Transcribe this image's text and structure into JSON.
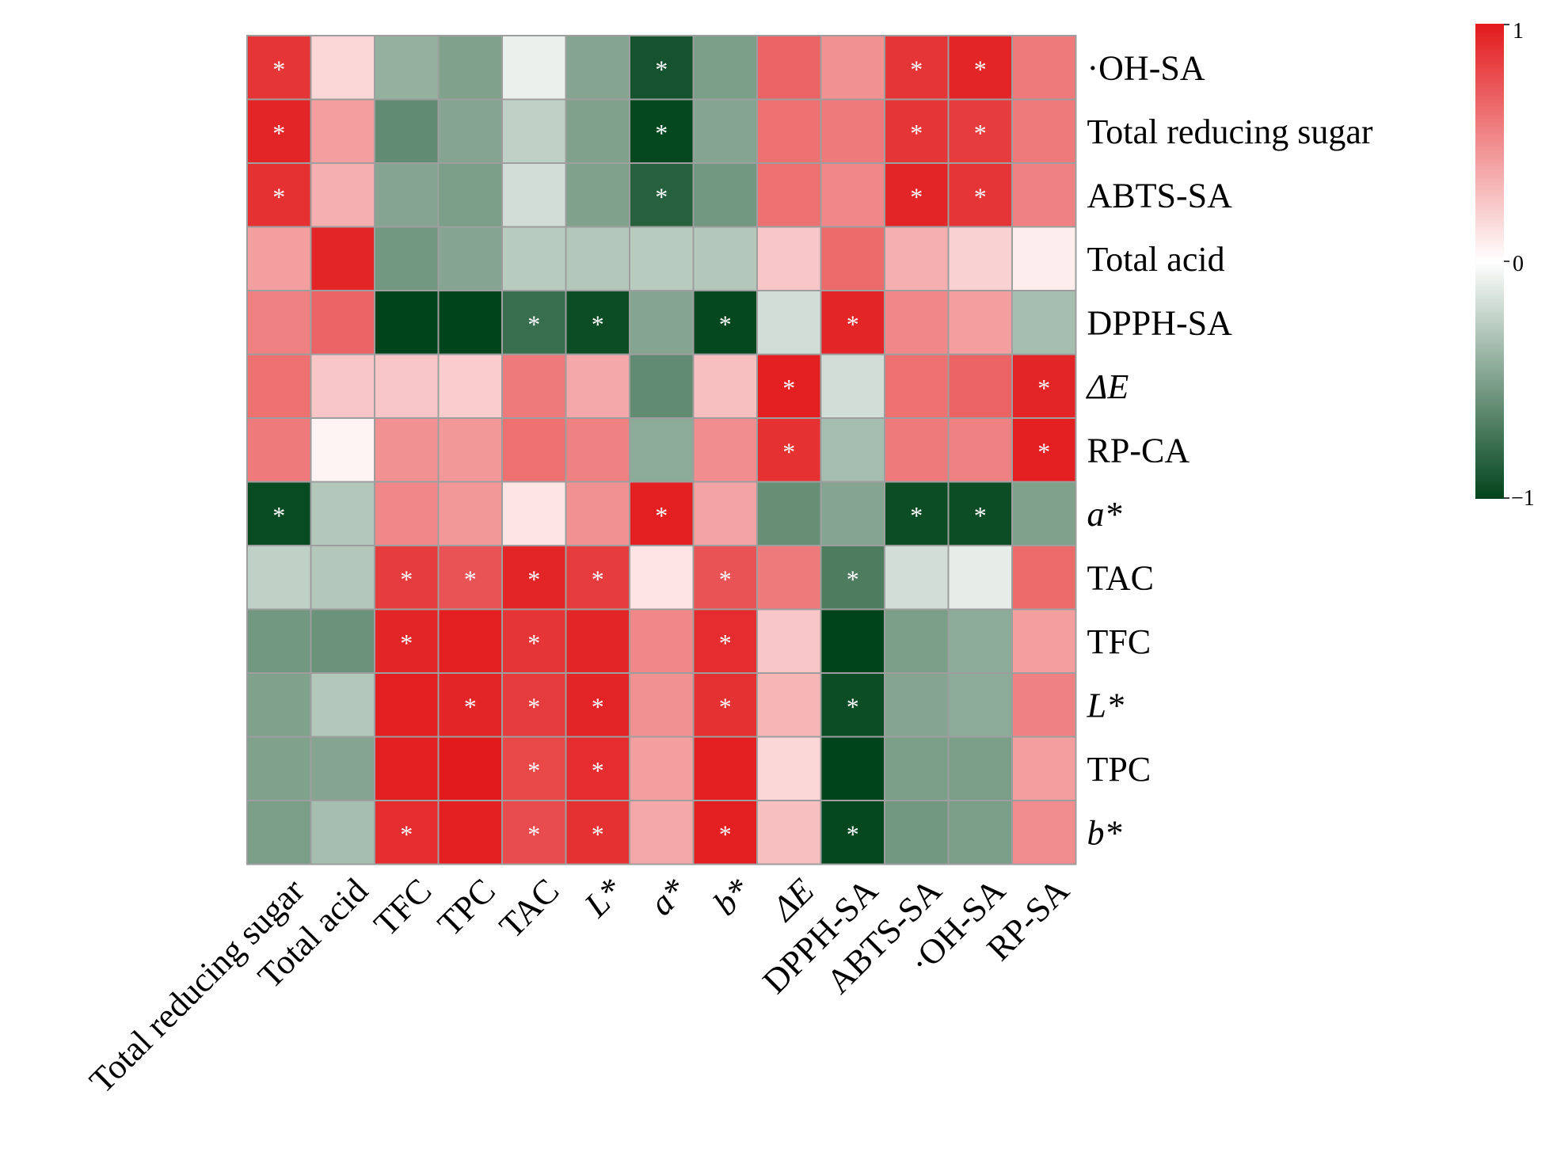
{
  "chart_data": {
    "type": "heatmap",
    "title": "",
    "columns": [
      "Total reducing sugar",
      "Total acid",
      "TFC",
      "TPC",
      "TAC",
      "L*",
      "a*",
      "b*",
      "ΔE",
      "DPPH-SA",
      "ABTS-SA",
      "·OH-SA",
      "RP-SA"
    ],
    "column_italic": [
      false,
      false,
      false,
      false,
      false,
      true,
      true,
      true,
      true,
      false,
      false,
      false,
      false
    ],
    "rows": [
      "·OH-SA",
      "Total reducing sugar",
      "ABTS-SA",
      "Total acid",
      "DPPH-SA",
      "ΔE",
      "RP-CA",
      "a*",
      "TAC",
      "TFC",
      "L*",
      "TPC",
      "b*"
    ],
    "row_italic": [
      false,
      false,
      false,
      false,
      false,
      true,
      false,
      true,
      false,
      false,
      true,
      false,
      true
    ],
    "values": [
      [
        0.88,
        0.18,
        -0.42,
        -0.5,
        -0.08,
        -0.48,
        -0.92,
        -0.52,
        0.68,
        0.48,
        0.88,
        0.95,
        0.58
      ],
      [
        0.95,
        0.42,
        -0.62,
        -0.48,
        -0.25,
        -0.5,
        -0.98,
        -0.48,
        0.62,
        0.58,
        0.88,
        0.85,
        0.58
      ],
      [
        0.9,
        0.35,
        -0.48,
        -0.52,
        -0.18,
        -0.5,
        -0.85,
        -0.55,
        0.62,
        0.52,
        0.95,
        0.88,
        0.55
      ],
      [
        0.42,
        0.95,
        -0.55,
        -0.48,
        -0.28,
        -0.3,
        -0.28,
        -0.3,
        0.25,
        0.65,
        0.35,
        0.2,
        0.08
      ],
      [
        0.55,
        0.68,
        -1.0,
        -1.0,
        -0.78,
        -0.95,
        -0.48,
        -0.98,
        -0.18,
        0.95,
        0.52,
        0.42,
        -0.35
      ],
      [
        0.62,
        0.25,
        0.25,
        0.22,
        0.58,
        0.38,
        -0.62,
        0.28,
        0.98,
        -0.18,
        0.62,
        0.68,
        0.95
      ],
      [
        0.58,
        0.05,
        0.48,
        0.45,
        0.62,
        0.55,
        -0.45,
        0.5,
        0.9,
        -0.35,
        0.58,
        0.55,
        0.98
      ],
      [
        -0.97,
        -0.3,
        0.52,
        0.45,
        0.12,
        0.48,
        0.98,
        0.4,
        -0.6,
        -0.48,
        -0.95,
        -0.95,
        -0.5
      ],
      [
        -0.25,
        -0.3,
        0.85,
        0.75,
        0.95,
        0.85,
        0.12,
        0.75,
        0.58,
        -0.7,
        -0.18,
        -0.1,
        0.65
      ],
      [
        -0.55,
        -0.58,
        0.95,
        0.98,
        0.88,
        0.95,
        0.52,
        0.92,
        0.25,
        -1.0,
        -0.52,
        -0.45,
        0.42
      ],
      [
        -0.5,
        -0.3,
        0.98,
        0.95,
        0.85,
        0.95,
        0.48,
        0.9,
        0.32,
        -0.95,
        -0.48,
        -0.45,
        0.55
      ],
      [
        -0.5,
        -0.48,
        0.98,
        1.0,
        0.8,
        0.92,
        0.42,
        0.98,
        0.18,
        -1.0,
        -0.52,
        -0.52,
        0.42
      ],
      [
        -0.52,
        -0.35,
        0.92,
        0.98,
        0.78,
        0.9,
        0.38,
        0.98,
        0.28,
        -0.98,
        -0.55,
        -0.52,
        0.5
      ]
    ],
    "significant": [
      [
        true,
        false,
        false,
        false,
        false,
        false,
        true,
        false,
        false,
        false,
        true,
        true,
        false
      ],
      [
        true,
        false,
        false,
        false,
        false,
        false,
        true,
        false,
        false,
        false,
        true,
        true,
        false
      ],
      [
        true,
        false,
        false,
        false,
        false,
        false,
        true,
        false,
        false,
        false,
        true,
        true,
        false
      ],
      [
        false,
        false,
        false,
        false,
        false,
        false,
        false,
        false,
        false,
        false,
        false,
        false,
        false
      ],
      [
        false,
        false,
        false,
        false,
        true,
        true,
        false,
        true,
        false,
        true,
        false,
        false,
        false
      ],
      [
        false,
        false,
        false,
        false,
        false,
        false,
        false,
        false,
        true,
        false,
        false,
        false,
        true
      ],
      [
        false,
        false,
        false,
        false,
        false,
        false,
        false,
        false,
        true,
        false,
        false,
        false,
        true
      ],
      [
        true,
        false,
        false,
        false,
        false,
        false,
        true,
        false,
        false,
        false,
        true,
        true,
        false
      ],
      [
        false,
        false,
        true,
        true,
        true,
        true,
        false,
        true,
        false,
        true,
        false,
        false,
        false
      ],
      [
        false,
        false,
        true,
        false,
        true,
        false,
        false,
        true,
        false,
        false,
        false,
        false,
        false
      ],
      [
        false,
        false,
        false,
        true,
        true,
        true,
        false,
        true,
        false,
        true,
        false,
        false,
        false
      ],
      [
        false,
        false,
        false,
        false,
        true,
        true,
        false,
        false,
        false,
        false,
        false,
        false,
        false
      ],
      [
        false,
        false,
        true,
        false,
        true,
        true,
        false,
        true,
        false,
        true,
        false,
        false,
        false
      ]
    ],
    "significance_marker": "*",
    "colorbar": {
      "range": [
        -1,
        1
      ],
      "tick_labels": [
        "1",
        "0",
        "−1"
      ],
      "colors": {
        "high": "#e31a1c",
        "mid": "#ffffff",
        "low": "#00441b"
      }
    },
    "cell_border_color": "#9e9e9e"
  }
}
